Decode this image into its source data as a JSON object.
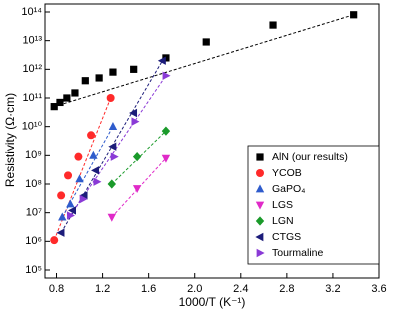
{
  "chart_data": {
    "type": "scatter",
    "x_label": "1000/T (K⁻¹)",
    "y_label": "Resistivity (Ω·cm)",
    "xlim": [
      0.7,
      3.6
    ],
    "xticks": [
      0.8,
      1.2,
      1.6,
      {
        "value": 2,
        "label": "2.0"
      },
      2.4,
      2.8,
      3.2,
      3.6
    ],
    "ylim": [
      100000,
      100000000000000
    ],
    "ylog": true,
    "yticks": [
      {
        "value": 100000,
        "label": "10⁵"
      },
      {
        "value": 1000000,
        "label": "10⁶"
      },
      {
        "value": 10000000,
        "label": "10⁷"
      },
      {
        "value": 100000000,
        "label": "10⁸"
      },
      {
        "value": 1000000000,
        "label": "10⁹"
      },
      {
        "value": 10000000000,
        "label": "10¹⁰"
      },
      {
        "value": 100000000000,
        "label": "10¹¹"
      },
      {
        "value": 1000000000000,
        "label": "10¹²"
      },
      {
        "value": 10000000000000,
        "label": "10¹³"
      },
      {
        "value": 100000000000000,
        "label": "10¹⁴"
      }
    ],
    "legend": "right",
    "series": [
      {
        "name": "AlN (our results)",
        "color": "#000000",
        "marker": "square",
        "x": [
          0.78,
          0.83,
          0.89,
          0.96,
          1.05,
          1.17,
          1.29,
          1.47,
          1.75,
          2.1,
          2.68,
          3.38
        ],
        "values": [
          50000000000,
          70000000000,
          100000000000,
          150000000000,
          400000000000,
          500000000000,
          800000000000,
          1000000000000,
          2500000000000,
          9000000000000,
          35000000000000,
          80000000000000
        ]
      },
      {
        "name": "YCOB",
        "color": "#ff2a2a",
        "marker": "circle",
        "x": [
          0.78,
          0.84,
          0.9,
          0.99,
          1.1,
          1.27
        ],
        "values": [
          1100000,
          40000000,
          200000000,
          900000000,
          5000000000,
          100000000000
        ]
      },
      {
        "name": "GaPO₄",
        "color": "#2f5ccc",
        "marker": "triangle-up",
        "x": [
          0.85,
          0.92,
          1.0,
          1.12,
          1.29
        ],
        "values": [
          7000000,
          20000000,
          150000000,
          1000000000,
          10000000000
        ]
      },
      {
        "name": "LGS",
        "color": "#e02ac8",
        "marker": "triangle-down",
        "x": [
          1.28,
          1.5,
          1.75
        ],
        "values": [
          7000000,
          70000000,
          800000000
        ]
      },
      {
        "name": "LGN",
        "color": "#1a9a2a",
        "marker": "diamond",
        "x": [
          1.28,
          1.5,
          1.75
        ],
        "values": [
          100000000,
          900000000,
          7000000000
        ]
      },
      {
        "name": "CTGS",
        "color": "#1c1c7a",
        "marker": "triangle-left",
        "x": [
          0.84,
          0.94,
          1.04,
          1.14,
          1.29,
          1.47,
          1.72
        ],
        "values": [
          2000000,
          12000000,
          40000000,
          300000000,
          2000000000,
          30000000000,
          2000000000000
        ]
      },
      {
        "name": "Tourmaline",
        "color": "#8a3ad6",
        "marker": "triangle-right",
        "x": [
          0.92,
          1.03,
          1.15,
          1.3,
          1.48,
          1.75
        ],
        "values": [
          8000000,
          30000000,
          120000000,
          900000000,
          15000000000,
          600000000000
        ]
      }
    ]
  }
}
